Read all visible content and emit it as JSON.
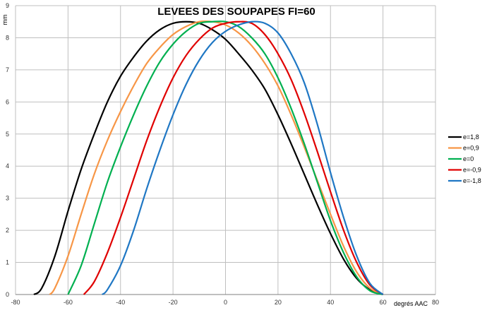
{
  "chart_data": {
    "type": "line",
    "title": "LEVEES DES SOUPAPES FI=60",
    "xlabel": "degrés AAC",
    "ylabel": "mm",
    "xlim": [
      -80,
      80
    ],
    "ylim": [
      0,
      9
    ],
    "xticks": [
      "-80",
      "-60",
      "-40",
      "-20",
      "0",
      "20",
      "40",
      "60",
      "80"
    ],
    "yticks": [
      "0",
      "1",
      "2",
      "3",
      "4",
      "5",
      "6",
      "7",
      "8",
      "9"
    ],
    "grid": true,
    "legend_position": "right",
    "series": [
      {
        "name": "e=1,8",
        "color": "#000000",
        "x": [
          -73,
          -70,
          -65,
          -60,
          -55,
          -50,
          -45,
          -40,
          -35,
          -30,
          -25,
          -20,
          -15,
          -10,
          -5,
          0,
          5,
          10,
          15,
          20,
          25,
          30,
          35,
          40,
          45,
          50,
          55,
          60
        ],
        "values": [
          0,
          0.2,
          1.2,
          2.6,
          3.9,
          5.0,
          6.0,
          6.8,
          7.4,
          7.9,
          8.25,
          8.45,
          8.5,
          8.45,
          8.25,
          7.95,
          7.5,
          7.0,
          6.4,
          5.6,
          4.7,
          3.75,
          2.8,
          1.9,
          1.1,
          0.5,
          0.15,
          0
        ]
      },
      {
        "name": "e=0,9",
        "color": "#F79646",
        "x": [
          -67,
          -65,
          -60,
          -55,
          -50,
          -45,
          -40,
          -35,
          -30,
          -25,
          -20,
          -15,
          -10,
          -5,
          0,
          5,
          10,
          15,
          20,
          25,
          30,
          35,
          40,
          45,
          50,
          55,
          60
        ],
        "values": [
          0,
          0.2,
          1.2,
          2.5,
          3.75,
          4.8,
          5.7,
          6.5,
          7.2,
          7.7,
          8.1,
          8.35,
          8.5,
          8.5,
          8.4,
          8.15,
          7.75,
          7.2,
          6.5,
          5.6,
          4.6,
          3.55,
          2.5,
          1.5,
          0.7,
          0.2,
          0
        ]
      },
      {
        "name": "e=0",
        "color": "#00B050",
        "x": [
          -60,
          -55,
          -50,
          -45,
          -40,
          -35,
          -30,
          -25,
          -20,
          -15,
          -10,
          -5,
          0,
          5,
          10,
          15,
          20,
          25,
          30,
          35,
          40,
          45,
          50,
          55,
          60
        ],
        "values": [
          0,
          0.9,
          2.2,
          3.5,
          4.6,
          5.6,
          6.5,
          7.25,
          7.8,
          8.2,
          8.45,
          8.5,
          8.5,
          8.35,
          8.0,
          7.5,
          6.75,
          5.8,
          4.7,
          3.5,
          2.3,
          1.3,
          0.55,
          0.12,
          0
        ]
      },
      {
        "name": "e=-0,9",
        "color": "#E00000",
        "x": [
          -54,
          -50,
          -45,
          -40,
          -35,
          -30,
          -25,
          -20,
          -15,
          -10,
          -5,
          0,
          5,
          10,
          15,
          20,
          25,
          30,
          35,
          40,
          45,
          50,
          55,
          60
        ],
        "values": [
          0,
          0.4,
          1.3,
          2.4,
          3.6,
          4.8,
          5.85,
          6.75,
          7.45,
          7.95,
          8.3,
          8.45,
          8.5,
          8.45,
          8.1,
          7.5,
          6.7,
          5.65,
          4.45,
          3.2,
          2.0,
          1.0,
          0.3,
          0
        ]
      },
      {
        "name": "e=-1,8",
        "color": "#1F77C4",
        "x": [
          -47,
          -45,
          -40,
          -35,
          -30,
          -25,
          -20,
          -15,
          -10,
          -5,
          0,
          5,
          10,
          15,
          20,
          25,
          30,
          35,
          40,
          45,
          50,
          55,
          60
        ],
        "values": [
          0,
          0.15,
          0.9,
          2.0,
          3.3,
          4.5,
          5.6,
          6.55,
          7.3,
          7.85,
          8.2,
          8.4,
          8.5,
          8.45,
          8.15,
          7.5,
          6.6,
          5.3,
          3.8,
          2.4,
          1.2,
          0.35,
          0
        ]
      }
    ]
  }
}
